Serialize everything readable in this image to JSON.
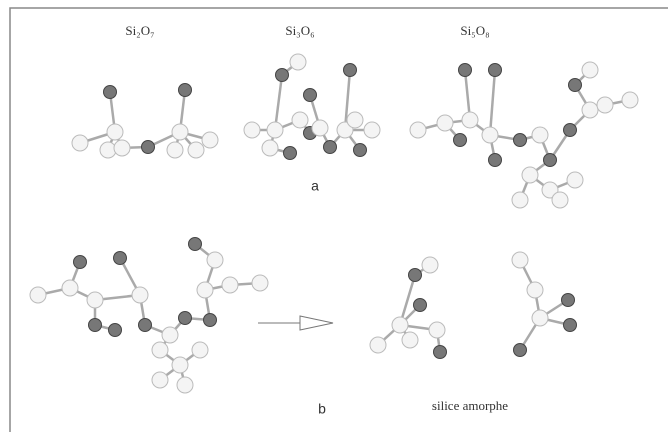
{
  "figure": {
    "panel_a": {
      "structures": [
        "Si₂O₇",
        "Si₃O₆",
        "Si₅O₈"
      ],
      "label": "a"
    },
    "panel_b": {
      "label": "b",
      "caption": "silice amorphe"
    }
  }
}
